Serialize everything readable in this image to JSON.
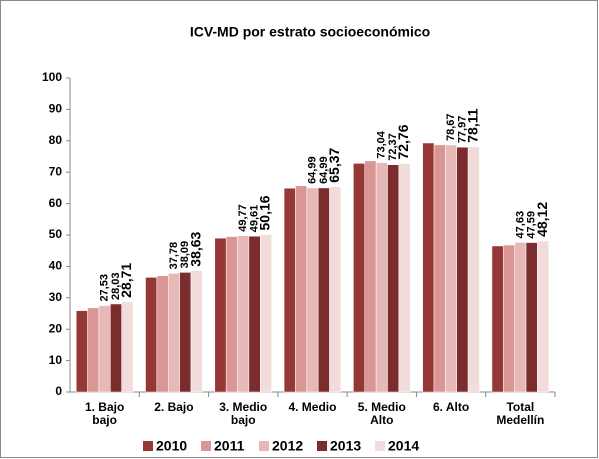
{
  "chart_data": {
    "type": "bar",
    "title": "ICV-MD por estrato socioeconómico",
    "categories": [
      "1. Bajo bajo",
      "2. Bajo",
      "3. Medio bajo",
      "4. Medio",
      "5. Medio Alto",
      "6. Alto",
      "Total Medellín"
    ],
    "series": [
      {
        "name": "2010",
        "color": "#953735",
        "values": [
          25.9,
          36.5,
          49.0,
          64.9,
          72.8,
          79.3,
          46.5
        ]
      },
      {
        "name": "2011",
        "color": "#d99694",
        "values": [
          26.8,
          37.0,
          49.5,
          65.7,
          73.6,
          78.7,
          46.8
        ]
      },
      {
        "name": "2012",
        "color": "#e6b9b8",
        "values": [
          27.53,
          37.78,
          49.77,
          64.99,
          73.04,
          78.67,
          47.63
        ],
        "value_labels": [
          "27,53",
          "37,78",
          "49,77",
          "64,99",
          "73,04",
          "78,67",
          "47,63"
        ]
      },
      {
        "name": "2013",
        "color": "#7b2c2c",
        "values": [
          28.03,
          38.09,
          49.61,
          64.99,
          72.37,
          77.97,
          47.59
        ],
        "value_labels": [
          "28,03",
          "38,09",
          "49,61",
          "64,99",
          "72,37",
          "77,97",
          "47,59"
        ]
      },
      {
        "name": "2014",
        "color": "#f2dcdb",
        "values": [
          28.71,
          38.63,
          50.16,
          65.37,
          72.76,
          78.11,
          48.12
        ],
        "value_labels": [
          "28,71",
          "38,63",
          "50,16",
          "65,37",
          "72,76",
          "78,11",
          "48,12"
        ]
      }
    ],
    "ylim": [
      0,
      100
    ],
    "yticks": [
      0,
      10,
      20,
      30,
      40,
      50,
      60,
      70,
      80,
      90,
      100
    ],
    "grid": false,
    "legend": "bottom"
  }
}
